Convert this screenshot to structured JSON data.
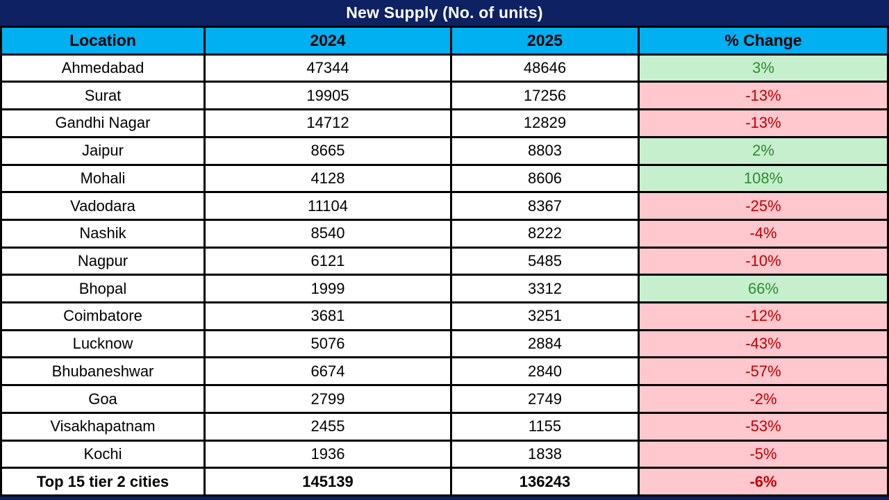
{
  "title": "New Supply (No. of units)",
  "columns": [
    "Location",
    "2024",
    "2025",
    "% Change"
  ],
  "rows": [
    {
      "location": "Ahmedabad",
      "y2024": "47344",
      "y2025": "48646",
      "change": "3%",
      "trend": "positive"
    },
    {
      "location": "Surat",
      "y2024": "19905",
      "y2025": "17256",
      "change": "-13%",
      "trend": "negative"
    },
    {
      "location": "Gandhi Nagar",
      "y2024": "14712",
      "y2025": "12829",
      "change": "-13%",
      "trend": "negative"
    },
    {
      "location": "Jaipur",
      "y2024": "8665",
      "y2025": "8803",
      "change": "2%",
      "trend": "positive"
    },
    {
      "location": "Mohali",
      "y2024": "4128",
      "y2025": "8606",
      "change": "108%",
      "trend": "positive"
    },
    {
      "location": "Vadodara",
      "y2024": "11104",
      "y2025": "8367",
      "change": "-25%",
      "trend": "negative"
    },
    {
      "location": "Nashik",
      "y2024": "8540",
      "y2025": "8222",
      "change": "-4%",
      "trend": "negative"
    },
    {
      "location": "Nagpur",
      "y2024": "6121",
      "y2025": "5485",
      "change": "-10%",
      "trend": "negative"
    },
    {
      "location": "Bhopal",
      "y2024": "1999",
      "y2025": "3312",
      "change": "66%",
      "trend": "positive"
    },
    {
      "location": "Coimbatore",
      "y2024": "3681",
      "y2025": "3251",
      "change": "-12%",
      "trend": "negative"
    },
    {
      "location": "Lucknow",
      "y2024": "5076",
      "y2025": "2884",
      "change": "-43%",
      "trend": "negative"
    },
    {
      "location": "Bhubaneshwar",
      "y2024": "6674",
      "y2025": "2840",
      "change": "-57%",
      "trend": "negative"
    },
    {
      "location": "Goa",
      "y2024": "2799",
      "y2025": "2749",
      "change": "-2%",
      "trend": "negative"
    },
    {
      "location": "Visakhapatnam",
      "y2024": "2455",
      "y2025": "1155",
      "change": "-53%",
      "trend": "negative"
    },
    {
      "location": "Kochi",
      "y2024": "1936",
      "y2025": "1838",
      "change": "-5%",
      "trend": "negative"
    }
  ],
  "total_row": {
    "location": "Top 15 tier 2 cities",
    "y2024": "145139",
    "y2025": "136243",
    "change": "-6%",
    "trend": "negative"
  },
  "colors": {
    "navy": "#0d2163",
    "header_blue": "#00b0f0",
    "border": "#000000",
    "row_bg": "#ffffff",
    "text": "#000000",
    "good_bg": "#c6efce",
    "good_text": "#2e8b2e",
    "bad_bg": "#ffc7ce",
    "bad_text": "#c00000"
  },
  "chart_data": {
    "type": "table",
    "title": "New Supply (No. of units)",
    "columns": [
      "Location",
      "2024",
      "2025",
      "% Change"
    ],
    "categories": [
      "Ahmedabad",
      "Surat",
      "Gandhi Nagar",
      "Jaipur",
      "Mohali",
      "Vadodara",
      "Nashik",
      "Nagpur",
      "Bhopal",
      "Coimbatore",
      "Lucknow",
      "Bhubaneshwar",
      "Goa",
      "Visakhapatnam",
      "Kochi",
      "Top 15 tier 2 cities"
    ],
    "series": [
      {
        "name": "2024",
        "values": [
          47344,
          19905,
          14712,
          8665,
          4128,
          11104,
          8540,
          6121,
          1999,
          3681,
          5076,
          6674,
          2799,
          2455,
          1936,
          145139
        ]
      },
      {
        "name": "2025",
        "values": [
          48646,
          17256,
          12829,
          8803,
          8606,
          8367,
          8222,
          5485,
          3312,
          3251,
          2884,
          2840,
          2749,
          1155,
          1838,
          136243
        ]
      },
      {
        "name": "% Change",
        "values": [
          3,
          -13,
          -13,
          2,
          108,
          -25,
          -4,
          -10,
          66,
          -12,
          -43,
          -57,
          -2,
          -53,
          -5,
          -6
        ]
      }
    ],
    "layout": {
      "conditional_formatting": "positive % green, negative % pink",
      "total_row_bold": true
    }
  }
}
